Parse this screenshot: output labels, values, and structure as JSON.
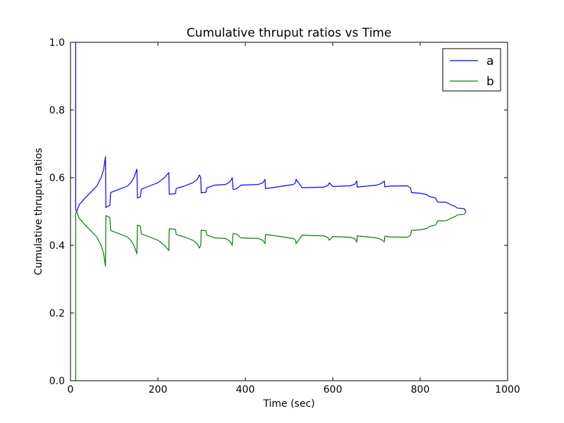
{
  "chart_data": {
    "type": "line",
    "title": "Cumulative thruput ratios vs Time",
    "xlabel": "Time (sec)",
    "ylabel": "Cumulative thruput ratios",
    "xlim": [
      0,
      1000
    ],
    "ylim": [
      0.0,
      1.0
    ],
    "xticks": [
      0,
      200,
      400,
      600,
      800,
      1000
    ],
    "xtick_labels": [
      "0",
      "200",
      "400",
      "600",
      "800",
      "1000"
    ],
    "yticks": [
      0.0,
      0.2,
      0.4,
      0.6,
      0.8,
      1.0
    ],
    "ytick_labels": [
      "0.0",
      "0.2",
      "0.4",
      "0.6",
      "0.8",
      "1.0"
    ],
    "grid": false,
    "legend_position": "top-right",
    "series": [
      {
        "name": "a",
        "color": "#0000ff",
        "x": [
          12,
          12,
          14,
          20,
          30,
          45,
          60,
          70,
          76,
          80,
          81,
          90,
          92,
          110,
          130,
          138,
          145,
          152,
          153,
          160,
          162,
          180,
          200,
          215,
          225,
          226,
          240,
          242,
          260,
          280,
          290,
          295,
          298,
          299,
          310,
          312,
          330,
          355,
          365,
          370,
          372,
          380,
          390,
          430,
          440,
          445,
          446,
          460,
          500,
          510,
          515,
          516,
          530,
          580,
          590,
          592,
          600,
          640,
          650,
          655,
          656,
          670,
          700,
          710,
          718,
          719,
          730,
          770,
          778,
          780,
          800,
          815,
          820,
          835,
          840,
          860,
          870,
          880,
          885,
          900,
          905
        ],
        "y": [
          1.0,
          0.505,
          0.5,
          0.52,
          0.535,
          0.555,
          0.575,
          0.6,
          0.625,
          0.662,
          0.512,
          0.518,
          0.556,
          0.565,
          0.575,
          0.585,
          0.6,
          0.625,
          0.54,
          0.543,
          0.566,
          0.575,
          0.585,
          0.6,
          0.615,
          0.551,
          0.553,
          0.568,
          0.575,
          0.585,
          0.595,
          0.608,
          0.6,
          0.555,
          0.557,
          0.57,
          0.578,
          0.58,
          0.588,
          0.6,
          0.565,
          0.567,
          0.578,
          0.58,
          0.585,
          0.595,
          0.568,
          0.57,
          0.578,
          0.58,
          0.585,
          0.595,
          0.57,
          0.572,
          0.578,
          0.585,
          0.574,
          0.576,
          0.58,
          0.59,
          0.572,
          0.574,
          0.578,
          0.582,
          0.59,
          0.573,
          0.575,
          0.576,
          0.57,
          0.556,
          0.554,
          0.55,
          0.545,
          0.54,
          0.528,
          0.527,
          0.52,
          0.515,
          0.51,
          0.509,
          0.5
        ]
      },
      {
        "name": "b",
        "color": "#008000",
        "x": [
          12,
          12,
          14,
          20,
          30,
          45,
          60,
          70,
          76,
          80,
          81,
          90,
          92,
          110,
          130,
          138,
          145,
          152,
          153,
          160,
          162,
          180,
          200,
          215,
          225,
          226,
          240,
          242,
          260,
          280,
          290,
          295,
          298,
          299,
          310,
          312,
          330,
          355,
          365,
          370,
          372,
          380,
          390,
          430,
          440,
          445,
          446,
          460,
          500,
          510,
          515,
          516,
          530,
          580,
          590,
          592,
          600,
          640,
          650,
          655,
          656,
          670,
          700,
          710,
          718,
          719,
          730,
          770,
          778,
          780,
          800,
          815,
          820,
          835,
          840,
          860,
          870,
          880,
          885,
          900,
          905
        ],
        "y": [
          0.0,
          0.495,
          0.5,
          0.48,
          0.465,
          0.445,
          0.425,
          0.4,
          0.375,
          0.338,
          0.488,
          0.482,
          0.444,
          0.435,
          0.425,
          0.415,
          0.4,
          0.375,
          0.46,
          0.457,
          0.434,
          0.425,
          0.415,
          0.4,
          0.385,
          0.449,
          0.447,
          0.432,
          0.425,
          0.415,
          0.405,
          0.392,
          0.4,
          0.445,
          0.443,
          0.43,
          0.422,
          0.42,
          0.412,
          0.4,
          0.435,
          0.433,
          0.422,
          0.42,
          0.415,
          0.405,
          0.432,
          0.43,
          0.422,
          0.42,
          0.415,
          0.405,
          0.43,
          0.428,
          0.422,
          0.415,
          0.426,
          0.424,
          0.42,
          0.41,
          0.428,
          0.426,
          0.422,
          0.418,
          0.41,
          0.427,
          0.425,
          0.424,
          0.43,
          0.444,
          0.446,
          0.45,
          0.455,
          0.46,
          0.472,
          0.473,
          0.48,
          0.485,
          0.49,
          0.491,
          0.5
        ]
      }
    ]
  }
}
